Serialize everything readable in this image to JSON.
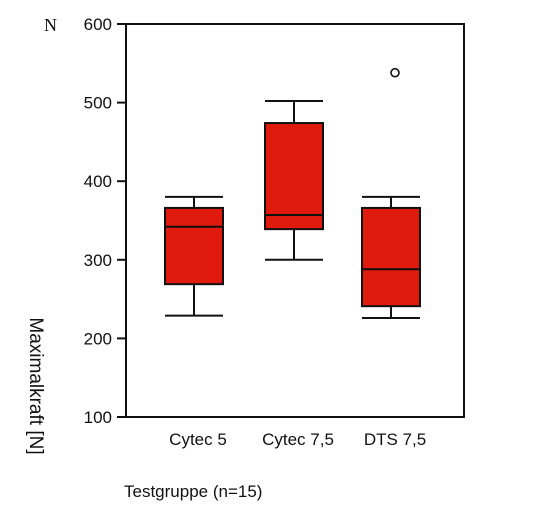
{
  "chart_data": {
    "type": "boxplot",
    "title": "",
    "ylabel": "Maximalkraft [N]",
    "xlabel": "Testgruppe (n=15)",
    "y_unit_marker": "N",
    "ylim": [
      100,
      600
    ],
    "yticks": [
      100,
      200,
      300,
      400,
      500,
      600
    ],
    "ytick_labels": [
      "100",
      "200",
      "300",
      "400",
      "500",
      "600"
    ],
    "grid": false,
    "box_color": "#e01a0c",
    "categories": [
      "Cytec 5",
      "Cytec 7,5",
      "DTS 7,5"
    ],
    "boxes": [
      {
        "category": "Cytec 5",
        "whisker_low": 229,
        "q1": 269,
        "median": 342,
        "q3": 366,
        "whisker_high": 380,
        "outliers": []
      },
      {
        "category": "Cytec 7,5",
        "whisker_low": 300,
        "q1": 339,
        "median": 357,
        "q3": 474,
        "whisker_high": 502,
        "outliers": []
      },
      {
        "category": "DTS 7,5",
        "whisker_low": 226,
        "q1": 241,
        "median": 288,
        "q3": 366,
        "whisker_high": 380,
        "outliers": [
          538
        ]
      }
    ]
  }
}
